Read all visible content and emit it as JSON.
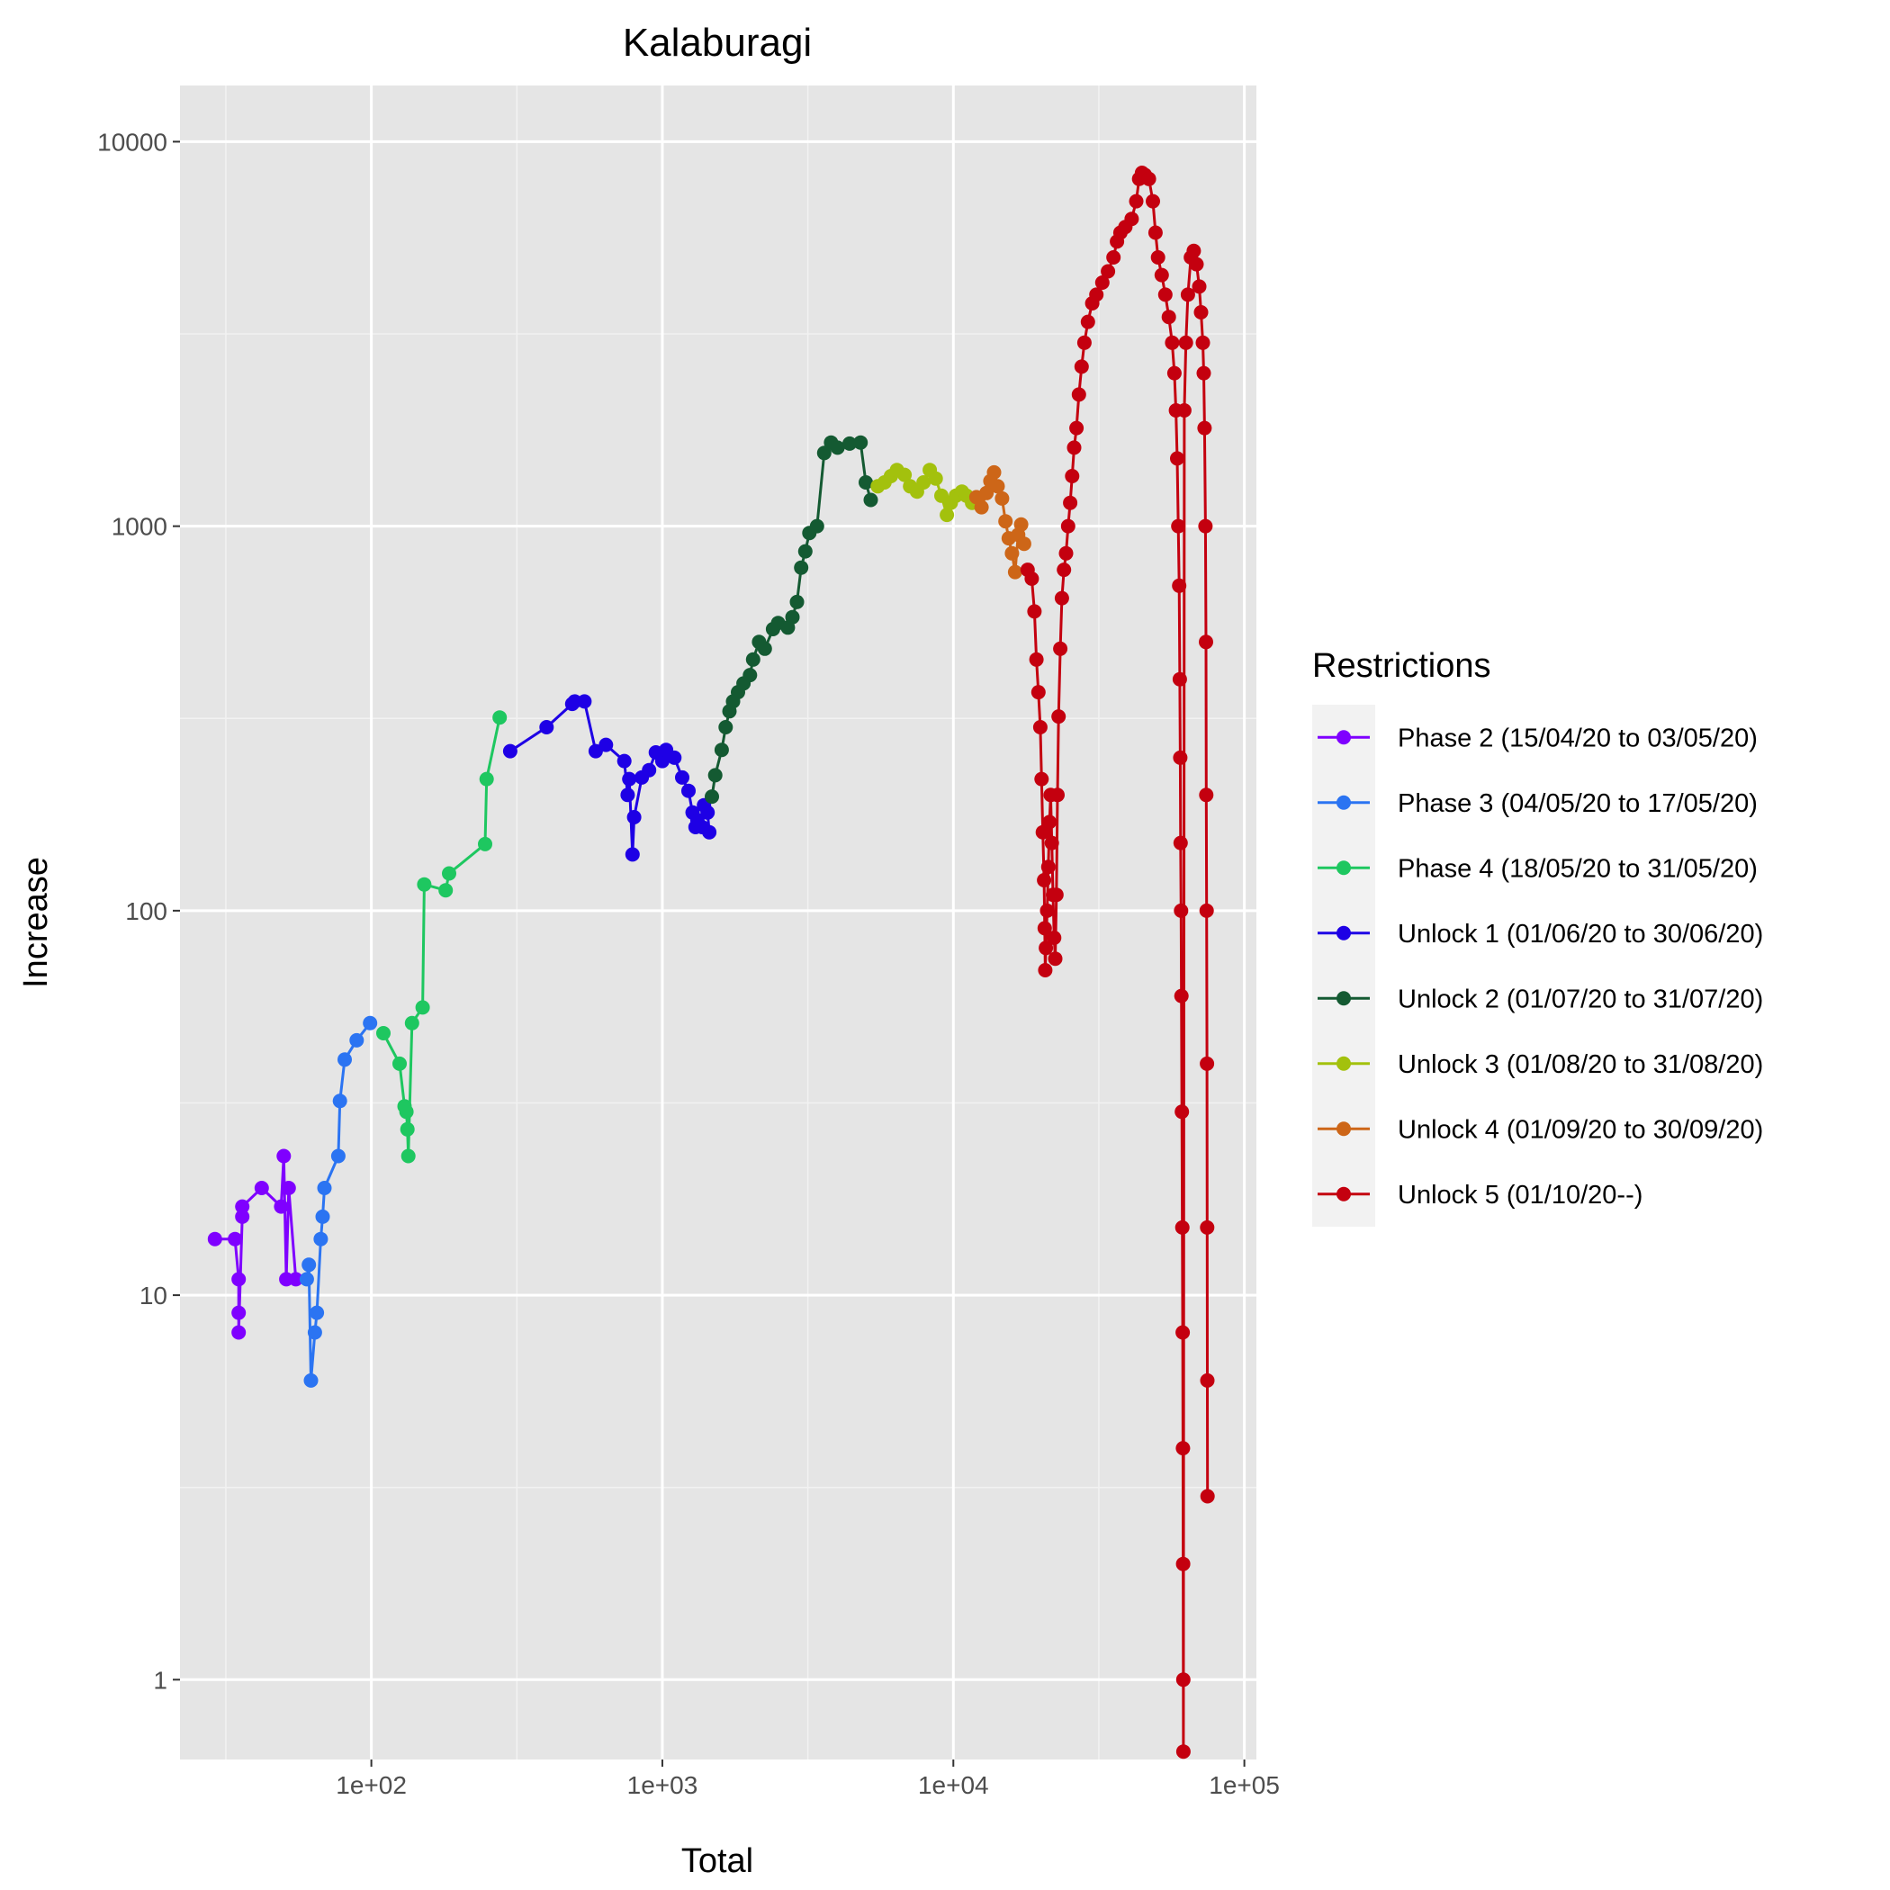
{
  "chart_data": {
    "type": "line",
    "title": "Kalaburagi",
    "xlabel": "Total",
    "ylabel": "Increase",
    "x_scale": "log10",
    "y_scale": "log10",
    "xlim": [
      22,
      110000
    ],
    "ylim": [
      0.62,
      14000
    ],
    "x_ticks": [
      100,
      1000,
      10000,
      100000
    ],
    "x_tick_labels": [
      "1e+02",
      "1e+03",
      "1e+04",
      "1e+05"
    ],
    "y_ticks": [
      1,
      10,
      100,
      1000,
      10000
    ],
    "y_tick_labels": [
      "1",
      "10",
      "100",
      "1000",
      "10000"
    ],
    "grid": true,
    "legend": {
      "title": "Restrictions",
      "position": "right"
    },
    "colors": {
      "panel_bg": "#e5e5e5",
      "grid_major": "#ffffff",
      "grid_minor": "#f2f2f2",
      "legend_key_bg": "#f2f2f2"
    },
    "series": [
      {
        "name": "Phase 2 (15/04/20 to 03/05/20)",
        "color": "#7f00ff",
        "points": [
          [
            29,
            14
          ],
          [
            34,
            14
          ],
          [
            35,
            11
          ],
          [
            35,
            9
          ],
          [
            35,
            8
          ],
          [
            36,
            16
          ],
          [
            36,
            17
          ],
          [
            42,
            19
          ],
          [
            49,
            17
          ],
          [
            50,
            23
          ],
          [
            51,
            11
          ],
          [
            52,
            19
          ],
          [
            55,
            11
          ]
        ]
      },
      {
        "name": "Phase 3 (04/05/20 to 17/05/20)",
        "color": "#2b74f2",
        "points": [
          [
            60,
            11
          ],
          [
            61,
            12
          ],
          [
            62,
            6
          ],
          [
            64,
            8
          ],
          [
            65,
            9
          ],
          [
            67,
            14
          ],
          [
            68,
            16
          ],
          [
            69,
            19
          ],
          [
            77,
            23
          ],
          [
            78,
            32
          ],
          [
            81,
            41
          ],
          [
            89,
            46
          ],
          [
            99,
            51
          ]
        ]
      },
      {
        "name": "Phase 4 (18/05/20 to 31/05/20)",
        "color": "#1ec760",
        "points": [
          [
            110,
            48
          ],
          [
            125,
            40
          ],
          [
            130,
            31
          ],
          [
            132,
            30
          ],
          [
            133,
            27
          ],
          [
            134,
            23
          ],
          [
            138,
            51
          ],
          [
            150,
            56
          ],
          [
            152,
            117
          ],
          [
            180,
            113
          ],
          [
            185,
            125
          ],
          [
            246,
            149
          ],
          [
            249,
            220
          ],
          [
            276,
            318
          ]
        ]
      },
      {
        "name": "Unlock 1 (01/06/20 to 30/06/20)",
        "color": "#1e00e5",
        "points": [
          [
            300,
            260
          ],
          [
            400,
            300
          ],
          [
            490,
            345
          ],
          [
            500,
            350
          ],
          [
            540,
            350
          ],
          [
            590,
            260
          ],
          [
            640,
            270
          ],
          [
            740,
            245
          ],
          [
            760,
            200
          ],
          [
            770,
            220
          ],
          [
            790,
            140
          ],
          [
            800,
            175
          ],
          [
            850,
            222
          ],
          [
            900,
            232
          ],
          [
            950,
            258
          ],
          [
            1000,
            245
          ],
          [
            1030,
            262
          ],
          [
            1100,
            250
          ],
          [
            1170,
            222
          ],
          [
            1230,
            205
          ],
          [
            1270,
            180
          ],
          [
            1300,
            165
          ],
          [
            1320,
            172
          ],
          [
            1370,
            165
          ],
          [
            1390,
            188
          ],
          [
            1430,
            180
          ],
          [
            1450,
            160
          ]
        ]
      },
      {
        "name": "Unlock 2 (01/07/20 to 31/07/20)",
        "color": "#145a32",
        "points": [
          [
            1480,
            198
          ],
          [
            1520,
            225
          ],
          [
            1600,
            262
          ],
          [
            1650,
            300
          ],
          [
            1700,
            330
          ],
          [
            1750,
            350
          ],
          [
            1820,
            370
          ],
          [
            1900,
            390
          ],
          [
            2000,
            410
          ],
          [
            2050,
            450
          ],
          [
            2150,
            500
          ],
          [
            2250,
            480
          ],
          [
            2400,
            540
          ],
          [
            2500,
            560
          ],
          [
            2700,
            545
          ],
          [
            2800,
            580
          ],
          [
            2900,
            635
          ],
          [
            3000,
            780
          ],
          [
            3100,
            860
          ],
          [
            3200,
            960
          ],
          [
            3400,
            1000
          ],
          [
            3600,
            1550
          ],
          [
            3800,
            1650
          ],
          [
            4000,
            1600
          ],
          [
            4400,
            1640
          ],
          [
            4800,
            1650
          ],
          [
            5000,
            1300
          ],
          [
            5200,
            1170
          ]
        ]
      },
      {
        "name": "Unlock 3 (01/08/20 to 31/08/20)",
        "color": "#a3c10d",
        "points": [
          [
            5500,
            1270
          ],
          [
            5800,
            1300
          ],
          [
            6100,
            1350
          ],
          [
            6400,
            1400
          ],
          [
            6800,
            1360
          ],
          [
            7100,
            1270
          ],
          [
            7500,
            1230
          ],
          [
            7900,
            1300
          ],
          [
            8300,
            1400
          ],
          [
            8700,
            1330
          ],
          [
            9100,
            1200
          ],
          [
            9500,
            1070
          ],
          [
            9800,
            1150
          ],
          [
            10200,
            1200
          ],
          [
            10700,
            1230
          ],
          [
            11100,
            1200
          ],
          [
            11600,
            1150
          ]
        ]
      },
      {
        "name": "Unlock 4 (01/09/20 to 30/09/20)",
        "color": "#cd6618",
        "points": [
          [
            12000,
            1190
          ],
          [
            12500,
            1120
          ],
          [
            13000,
            1220
          ],
          [
            13400,
            1310
          ],
          [
            13800,
            1380
          ],
          [
            14200,
            1270
          ],
          [
            14700,
            1180
          ],
          [
            15100,
            1030
          ],
          [
            15500,
            930
          ],
          [
            15900,
            850
          ],
          [
            16300,
            760
          ],
          [
            16700,
            950
          ],
          [
            17100,
            1010
          ],
          [
            17500,
            900
          ]
        ]
      },
      {
        "name": "Unlock 5 (01/10/20--)",
        "color": "#c4000f",
        "points": [
          [
            18000,
            770
          ],
          [
            18600,
            730
          ],
          [
            19000,
            600
          ],
          [
            19300,
            450
          ],
          [
            19600,
            370
          ],
          [
            19900,
            300
          ],
          [
            20100,
            220
          ],
          [
            20300,
            160
          ],
          [
            20500,
            120
          ],
          [
            20600,
            90
          ],
          [
            20700,
            70
          ],
          [
            20800,
            80
          ],
          [
            21000,
            100
          ],
          [
            21200,
            130
          ],
          [
            21400,
            170
          ],
          [
            21600,
            200
          ],
          [
            21800,
            150
          ],
          [
            22000,
            110
          ],
          [
            22200,
            85
          ],
          [
            22400,
            75
          ],
          [
            22600,
            110
          ],
          [
            22800,
            200
          ],
          [
            23000,
            320
          ],
          [
            23300,
            480
          ],
          [
            23600,
            650
          ],
          [
            24000,
            770
          ],
          [
            24400,
            850
          ],
          [
            24800,
            1000
          ],
          [
            25200,
            1150
          ],
          [
            25600,
            1350
          ],
          [
            26000,
            1600
          ],
          [
            26500,
            1800
          ],
          [
            27000,
            2200
          ],
          [
            27600,
            2600
          ],
          [
            28200,
            3000
          ],
          [
            29000,
            3400
          ],
          [
            30000,
            3800
          ],
          [
            31000,
            4000
          ],
          [
            32500,
            4300
          ],
          [
            34000,
            4600
          ],
          [
            35500,
            5000
          ],
          [
            36500,
            5500
          ],
          [
            37500,
            5800
          ],
          [
            39000,
            6000
          ],
          [
            41000,
            6300
          ],
          [
            42500,
            7000
          ],
          [
            43500,
            8000
          ],
          [
            44500,
            8300
          ],
          [
            45500,
            8200
          ],
          [
            47000,
            8000
          ],
          [
            48500,
            7000
          ],
          [
            49500,
            5800
          ],
          [
            50500,
            5000
          ],
          [
            52000,
            4500
          ],
          [
            53500,
            4000
          ],
          [
            55000,
            3500
          ],
          [
            56500,
            3000
          ],
          [
            57500,
            2500
          ],
          [
            58200,
            2000
          ],
          [
            58800,
            1500
          ],
          [
            59300,
            1000
          ],
          [
            59700,
            700
          ],
          [
            60000,
            400
          ],
          [
            60200,
            250
          ],
          [
            60400,
            150
          ],
          [
            60600,
            100
          ],
          [
            60800,
            60
          ],
          [
            61000,
            30
          ],
          [
            61200,
            15
          ],
          [
            61400,
            8
          ],
          [
            61500,
            4
          ],
          [
            61600,
            2
          ],
          [
            61700,
            1
          ],
          [
            61750,
            0.65
          ],
          [
            62200,
            2000
          ],
          [
            63000,
            3000
          ],
          [
            64000,
            4000
          ],
          [
            65500,
            5000
          ],
          [
            67000,
            5200
          ],
          [
            68500,
            4800
          ],
          [
            70000,
            4200
          ],
          [
            71000,
            3600
          ],
          [
            72000,
            3000
          ],
          [
            72500,
            2500
          ],
          [
            73000,
            1800
          ],
          [
            73500,
            1000
          ],
          [
            73800,
            500
          ],
          [
            74000,
            200
          ],
          [
            74200,
            100
          ],
          [
            74400,
            40
          ],
          [
            74500,
            15
          ],
          [
            74600,
            6
          ],
          [
            74700,
            3
          ]
        ]
      }
    ]
  }
}
